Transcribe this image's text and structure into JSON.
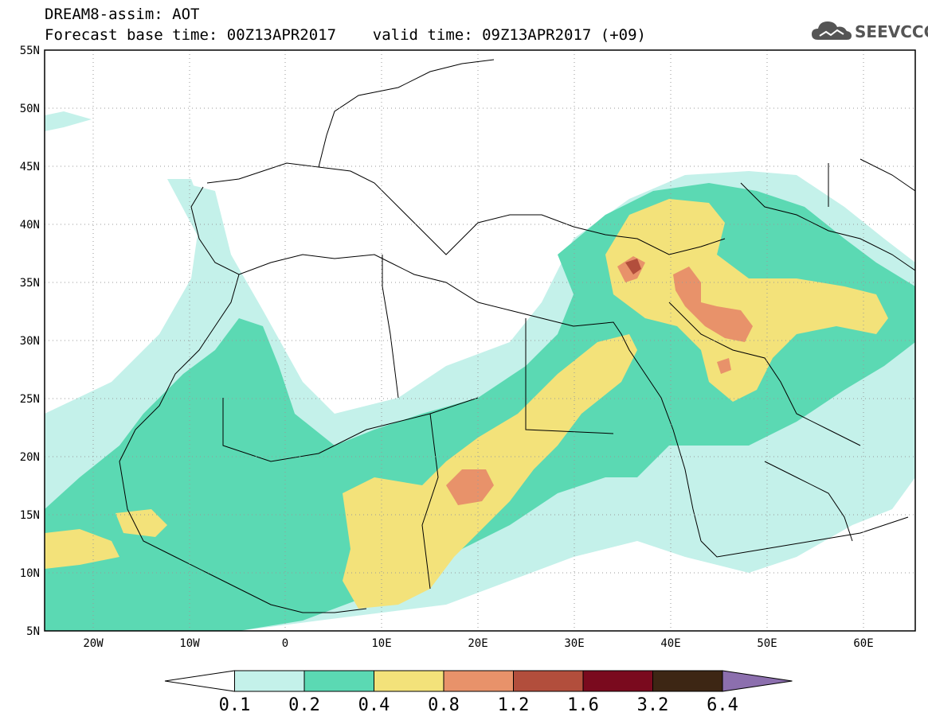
{
  "title": {
    "line1": "DREAM8-assim: AOT",
    "line2": "Forecast base time: 00Z13APR2017    valid time: 09Z13APR2017 (+09)"
  },
  "brand": {
    "name": "SEEVCCC",
    "icon": "cloud-logo-icon"
  },
  "map": {
    "lat_labels": [
      "55N",
      "50N",
      "45N",
      "40N",
      "35N",
      "30N",
      "25N",
      "20N",
      "15N",
      "10N",
      "5N"
    ],
    "lon_labels": [
      "20W",
      "10W",
      "0",
      "10E",
      "20E",
      "30E",
      "40E",
      "50E",
      "60E"
    ]
  },
  "legend": {
    "labels": [
      "0.1",
      "0.2",
      "0.4",
      "0.8",
      "1.2",
      "1.6",
      "3.2",
      "6.4"
    ],
    "colors": [
      "#ffffff",
      "#c4f1ea",
      "#5bd9b3",
      "#f3e27a",
      "#e8926a",
      "#b24e3c",
      "#7a0a1e",
      "#3d2614",
      "#8c6fae"
    ]
  }
}
